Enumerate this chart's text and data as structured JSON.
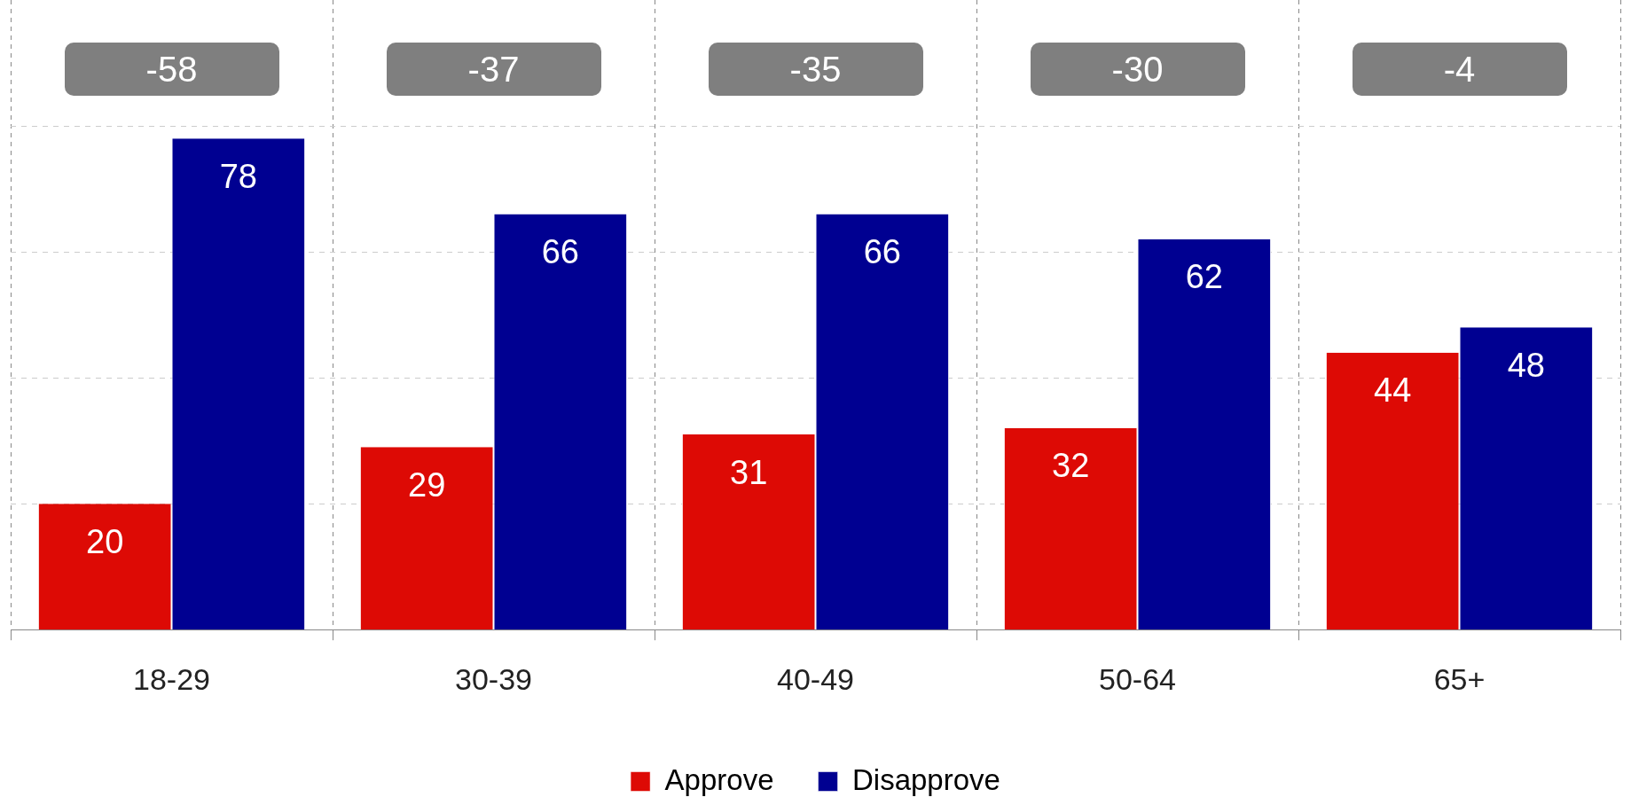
{
  "chart_data": {
    "type": "bar",
    "categories": [
      "18-29",
      "30-39",
      "40-49",
      "50-64",
      "65+"
    ],
    "series": [
      {
        "name": "Approve",
        "color": "#dd0a05",
        "values": [
          20,
          29,
          31,
          32,
          44
        ]
      },
      {
        "name": "Disapprove",
        "color": "#000091",
        "values": [
          78,
          66,
          66,
          62,
          48
        ]
      }
    ],
    "ylim": [
      0,
      100
    ],
    "yticks": [
      {
        "value": 20,
        "label": null
      },
      {
        "value": 40,
        "label": null
      },
      {
        "value": 60,
        "label": null
      },
      {
        "value": 80,
        "label": null
      }
    ],
    "tick_labels": "x",
    "grid": true,
    "legend": "bottom",
    "data_labels": true,
    "annotations": [
      "-58",
      "-37",
      "-35",
      "-30",
      "-4"
    ]
  }
}
